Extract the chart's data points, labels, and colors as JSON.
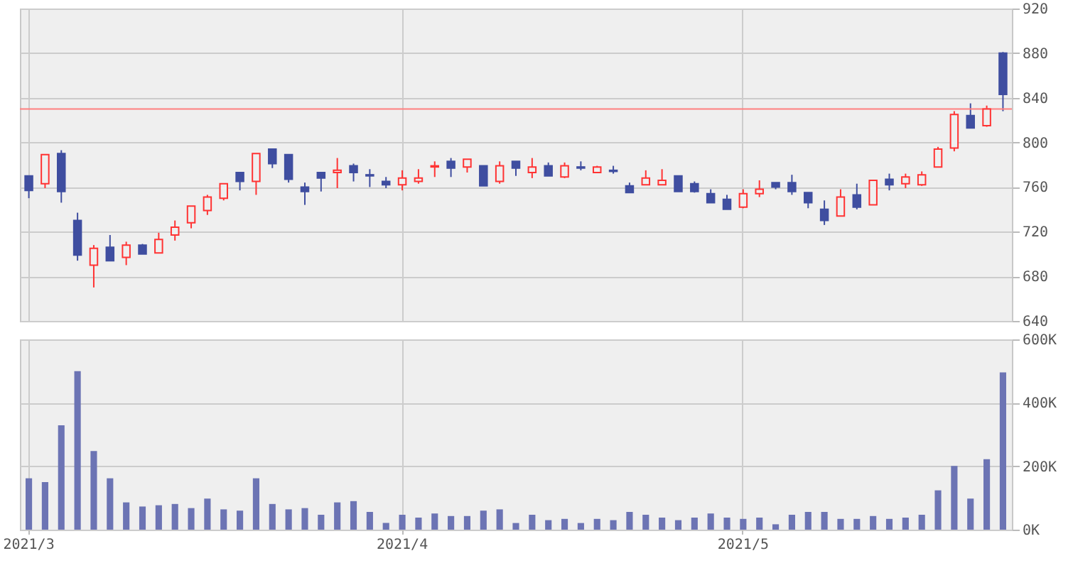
{
  "chart_data": [
    {
      "type": "candlestick",
      "categories": [
        "2021/3",
        null,
        null,
        null,
        null,
        null,
        null,
        null,
        null,
        null,
        null,
        null,
        null,
        null,
        null,
        null,
        null,
        null,
        null,
        null,
        null,
        null,
        null,
        "2021/4",
        null,
        null,
        null,
        null,
        null,
        null,
        null,
        null,
        null,
        null,
        null,
        null,
        null,
        null,
        null,
        null,
        null,
        null,
        null,
        null,
        "2021/5",
        null,
        null,
        null,
        null,
        null,
        null,
        null,
        null,
        null,
        null,
        null,
        null,
        null,
        null,
        null,
        null
      ],
      "ohlc": [
        [
          770,
          770,
          750,
          757
        ],
        [
          763,
          789,
          759,
          789
        ],
        [
          790,
          793,
          746,
          756
        ],
        [
          730,
          737,
          694,
          699
        ],
        [
          690,
          708,
          670,
          705
        ],
        [
          706,
          717,
          694,
          694
        ],
        [
          697,
          711,
          690,
          708
        ],
        [
          708,
          709,
          700,
          700
        ],
        [
          701,
          719,
          701,
          713
        ],
        [
          717,
          730,
          712,
          724
        ],
        [
          728,
          743,
          723,
          743
        ],
        [
          739,
          753,
          735,
          751
        ],
        [
          750,
          763,
          748,
          763
        ],
        [
          773,
          773,
          757,
          765
        ],
        [
          765,
          790,
          753,
          790
        ],
        [
          794,
          794,
          777,
          781
        ],
        [
          789,
          789,
          764,
          767
        ],
        [
          760,
          764,
          744,
          756
        ],
        [
          773,
          773,
          756,
          768
        ],
        [
          773,
          786,
          759,
          775
        ],
        [
          779,
          781,
          765,
          773
        ],
        [
          771,
          776,
          760,
          770
        ],
        [
          765,
          769,
          759,
          762
        ],
        [
          762,
          775,
          757,
          768
        ],
        [
          765,
          776,
          763,
          768
        ],
        [
          778,
          783,
          769,
          779
        ],
        [
          783,
          786,
          769,
          777
        ],
        [
          778,
          785,
          773,
          785
        ],
        [
          779,
          779,
          761,
          761
        ],
        [
          765,
          783,
          763,
          779
        ],
        [
          783,
          783,
          770,
          777
        ],
        [
          773,
          786,
          768,
          778
        ],
        [
          779,
          782,
          770,
          770
        ],
        [
          769,
          782,
          768,
          779
        ],
        [
          778,
          783,
          775,
          777
        ],
        [
          773,
          779,
          773,
          778
        ],
        [
          775,
          779,
          772,
          774
        ],
        [
          761,
          764,
          755,
          755
        ],
        [
          762,
          775,
          762,
          768
        ],
        [
          762,
          776,
          762,
          766
        ],
        [
          770,
          770,
          756,
          756
        ],
        [
          763,
          765,
          755,
          756
        ],
        [
          754,
          758,
          746,
          746
        ],
        [
          749,
          753,
          740,
          740
        ],
        [
          742,
          758,
          741,
          754
        ],
        [
          754,
          766,
          751,
          758
        ],
        [
          764,
          764,
          758,
          760
        ],
        [
          764,
          771,
          753,
          756
        ],
        [
          755,
          755,
          741,
          746
        ],
        [
          740,
          748,
          726,
          730
        ],
        [
          734,
          758,
          734,
          751
        ],
        [
          753,
          763,
          740,
          742
        ],
        [
          744,
          766,
          744,
          766
        ],
        [
          767,
          772,
          757,
          762
        ],
        [
          763,
          772,
          759,
          769
        ],
        [
          762,
          774,
          761,
          771
        ],
        [
          778,
          796,
          778,
          794
        ],
        [
          795,
          828,
          792,
          825
        ],
        [
          824,
          835,
          813,
          813
        ],
        [
          815,
          833,
          814,
          830
        ],
        [
          880,
          881,
          828,
          843
        ]
      ],
      "colors": [
        "#3f4ea0",
        "#ff3333",
        "#3f4ea0",
        "#3f4ea0",
        "#ff3333",
        "#3f4ea0",
        "#ff3333",
        "#3f4ea0",
        "#ff3333",
        "#ff3333",
        "#ff3333",
        "#ff3333",
        "#ff3333",
        "#3f4ea0",
        "#ff3333",
        "#3f4ea0",
        "#3f4ea0",
        "#3f4ea0",
        "#3f4ea0",
        "#ff3333",
        "#3f4ea0",
        "#3f4ea0",
        "#3f4ea0",
        "#ff3333",
        "#ff3333",
        "#ff3333",
        "#3f4ea0",
        "#ff3333",
        "#3f4ea0",
        "#ff3333",
        "#3f4ea0",
        "#ff3333",
        "#3f4ea0",
        "#ff3333",
        "#3f4ea0",
        "#ff3333",
        "#3f4ea0",
        "#3f4ea0",
        "#ff3333",
        "#ff3333",
        "#3f4ea0",
        "#3f4ea0",
        "#3f4ea0",
        "#3f4ea0",
        "#ff3333",
        "#ff3333",
        "#3f4ea0",
        "#3f4ea0",
        "#3f4ea0",
        "#3f4ea0",
        "#ff3333",
        "#3f4ea0",
        "#ff3333",
        "#3f4ea0",
        "#ff3333",
        "#ff3333",
        "#ff3333",
        "#ff3333",
        "#3f4ea0",
        "#ff3333",
        "#3f4ea0"
      ],
      "ylim": [
        640,
        920
      ],
      "yticks": [
        640,
        680,
        720,
        760,
        800,
        840,
        880,
        920
      ],
      "grid": true,
      "tick_labels": "y",
      "ref_lines": [
        {
          "axis": "y",
          "value": 830,
          "color": "#ff8080"
        }
      ]
    },
    {
      "type": "bar",
      "categories": [
        "2021/3",
        null,
        null,
        null,
        null,
        null,
        null,
        null,
        null,
        null,
        null,
        null,
        null,
        null,
        null,
        null,
        null,
        null,
        null,
        null,
        null,
        null,
        null,
        "2021/4",
        null,
        null,
        null,
        null,
        null,
        null,
        null,
        null,
        null,
        null,
        null,
        null,
        null,
        null,
        null,
        null,
        null,
        null,
        null,
        null,
        "2021/5",
        null,
        null,
        null,
        null,
        null,
        null,
        null,
        null,
        null,
        null,
        null,
        null,
        null,
        null,
        null,
        null
      ],
      "series": [
        {
          "color": "#6c74b4",
          "values": [
            162000,
            150000,
            329000,
            500000,
            248000,
            162000,
            86000,
            73000,
            77000,
            81000,
            68000,
            98000,
            64000,
            60000,
            162000,
            81000,
            64000,
            68000,
            47000,
            86000,
            90000,
            56000,
            21000,
            47000,
            38000,
            51000,
            43000,
            43000,
            60000,
            64000,
            21000,
            47000,
            30000,
            34000,
            21000,
            34000,
            30000,
            56000,
            47000,
            38000,
            30000,
            38000,
            51000,
            38000,
            34000,
            38000,
            17000,
            47000,
            56000,
            56000,
            34000,
            34000,
            43000,
            34000,
            38000,
            47000,
            124000,
            201000,
            98000,
            222000,
            496000
          ]
        }
      ],
      "ylim": [
        0,
        600000
      ],
      "yticks": [
        {
          "value": 0,
          "label": "0K"
        },
        {
          "value": 200000,
          "label": "200K"
        },
        {
          "value": 400000,
          "label": "400K"
        },
        {
          "value": 600000,
          "label": "600K"
        }
      ],
      "grid": true
    }
  ]
}
